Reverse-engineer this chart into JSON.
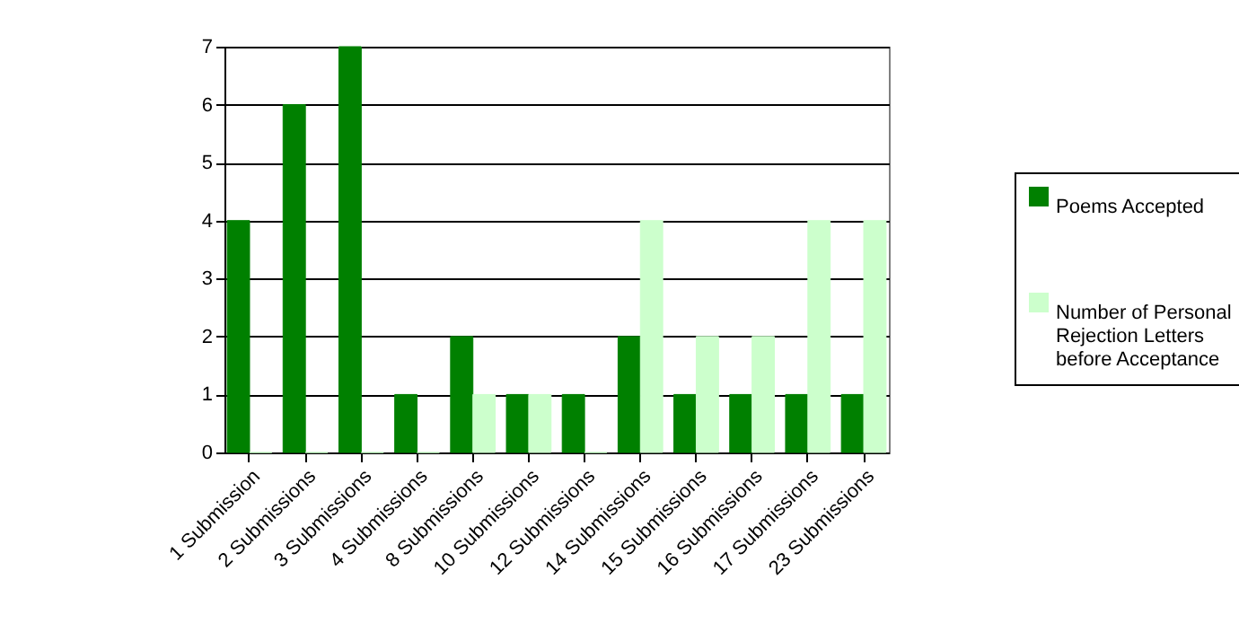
{
  "chart_data": {
    "type": "bar",
    "categories": [
      "1 Submission",
      "2 Submissions",
      "3 Submissions",
      "4 Submissions",
      "8 Submissions",
      "10 Submissions",
      "12 Submissions",
      "14 Submissions",
      "15 Submissions",
      "16 Submissions",
      "17 Submissions",
      "23 Submissions"
    ],
    "series": [
      {
        "name": "Poems Accepted",
        "color": "#008000",
        "values": [
          4,
          6,
          7,
          1,
          2,
          1,
          1,
          2,
          1,
          1,
          1,
          1
        ]
      },
      {
        "name": "Number of Personal Rejection Letters before Acceptance",
        "color": "#ccffcc",
        "values": [
          0,
          0,
          0,
          0,
          1,
          1,
          0,
          4,
          2,
          2,
          4,
          4
        ]
      }
    ],
    "ylim": [
      0,
      7
    ],
    "yticks": [
      0,
      1,
      2,
      3,
      4,
      5,
      6,
      7
    ],
    "grid": "y",
    "legend": "right"
  }
}
